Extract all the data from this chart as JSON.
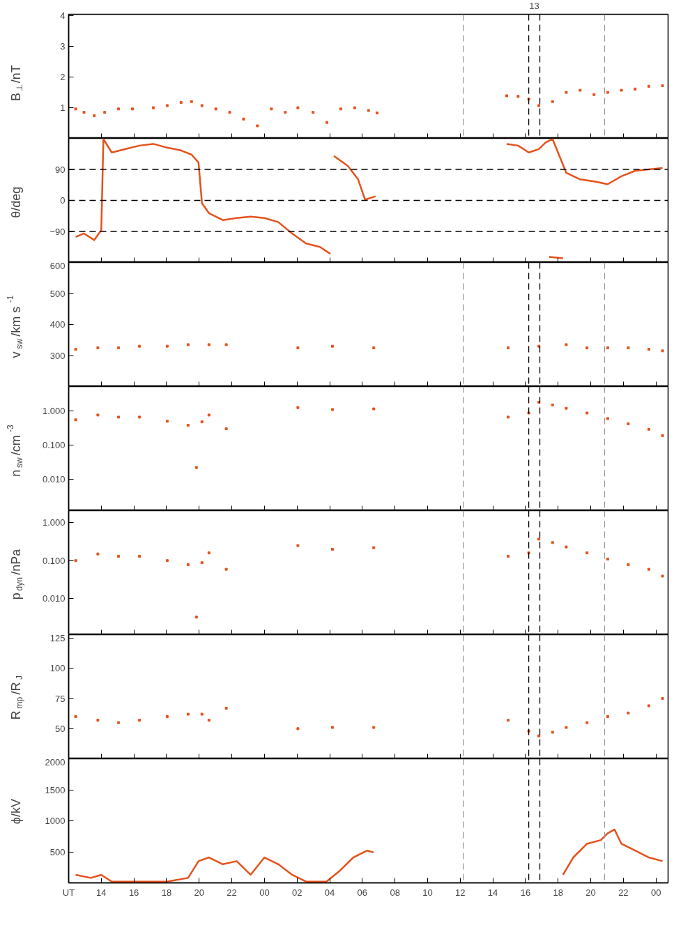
{
  "chart_data": [
    {
      "type": "scatter",
      "ylabel": "B$_{⊥}$/nT",
      "xlim": [
        12.0,
        48.74
      ],
      "xticks": [
        14,
        16,
        18,
        20,
        22,
        24,
        26,
        28,
        30,
        32,
        34,
        36,
        38,
        40,
        42,
        44,
        46,
        48
      ],
      "ylim": [
        0,
        4.05
      ],
      "yticks": [
        1,
        2,
        3,
        4
      ],
      "tick_labels": "y",
      "marker": "square",
      "series": [
        {
          "color": "#e4521c",
          "x": [
            12.43,
            12.94,
            13.57,
            14.21,
            15.06,
            15.91,
            17.19,
            18.04,
            18.89,
            19.53,
            20.17,
            21.02,
            21.87,
            22.72,
            23.57,
            24.43,
            25.28,
            26.05,
            26.98,
            27.83,
            28.68,
            29.53,
            30.38,
            30.9,
            38.85,
            39.55,
            40.2,
            40.82,
            41.66,
            42.5,
            43.35,
            44.2,
            45.04,
            45.88,
            46.72,
            47.56,
            48.4
          ],
          "values": [
            0.96,
            0.85,
            0.74,
            0.85,
            0.96,
            0.96,
            1.0,
            1.07,
            1.17,
            1.2,
            1.07,
            0.96,
            0.85,
            0.63,
            0.41,
            0.96,
            0.85,
            1.0,
            0.85,
            0.52,
            0.96,
            1.0,
            0.91,
            0.83,
            1.39,
            1.37,
            1.28,
            1.07,
            1.2,
            1.5,
            1.57,
            1.43,
            1.5,
            1.57,
            1.61,
            1.7,
            1.72
          ]
        }
      ],
      "ref_lines": [
        {
          "axis": "x",
          "value": 36.19,
          "color": "#999999",
          "line_style": "dashed"
        },
        {
          "axis": "x",
          "value": 40.2,
          "color": "#000000",
          "line_style": "dashed"
        },
        {
          "axis": "x",
          "value": 40.88,
          "color": "#000000",
          "line_style": "dashed"
        },
        {
          "axis": "x",
          "value": 44.85,
          "color": "#999999",
          "line_style": "dashed"
        }
      ],
      "annotations": [
        "13"
      ]
    },
    {
      "type": "line",
      "ylabel": "θ/deg",
      "xlim": [
        12.0,
        48.74
      ],
      "xticks": [
        14,
        16,
        18,
        20,
        22,
        24,
        26,
        28,
        30,
        32,
        34,
        36,
        38,
        40,
        42,
        44,
        46,
        48
      ],
      "ylim": [
        -180,
        180
      ],
      "yticks": [
        -90,
        0,
        90
      ],
      "tick_labels": "y",
      "line_style": "solid",
      "series": [
        {
          "color": "#e4521c",
          "x": [
            12.43,
            12.94,
            13.57,
            14.0,
            14.13,
            14.64,
            15.49,
            16.34,
            17.19,
            18.04,
            18.89,
            19.53,
            19.96,
            20.17,
            20.6,
            21.45,
            22.3,
            23.15,
            24.0,
            24.85,
            25.7,
            26.55,
            27.4,
            28.04,
            28.1,
            28.26,
            29.11,
            29.74,
            30.17,
            30.81,
            30.9,
            38.85,
            39.55,
            40.2,
            40.82,
            41.24,
            41.66,
            42.08,
            42.5,
            43.35,
            44.2,
            45.04,
            45.88,
            46.72,
            47.56,
            48.4
          ],
          "values": [
            -106,
            -96,
            -115,
            -86,
            178,
            139,
            149,
            159,
            164,
            153,
            145,
            133,
            110,
            -8,
            -37,
            -57,
            -51,
            -47,
            -51,
            -63,
            -96,
            -125,
            -135,
            -155,
            null,
            129,
            100,
            61,
            2,
            12,
            null,
            164,
            159,
            139,
            149,
            168,
            178,
            129,
            80,
            61,
            55,
            47,
            70,
            86,
            90,
            94
          ]
        },
        {
          "color": "#e4521c",
          "x": [
            41.45,
            42.3
          ],
          "values": [
            -164,
            -168
          ]
        }
      ],
      "ref_lines": [
        {
          "axis": "y",
          "value": 90,
          "color": "#000000",
          "line_style": "dashed"
        },
        {
          "axis": "y",
          "value": 0,
          "color": "#000000",
          "line_style": "dashed"
        },
        {
          "axis": "y",
          "value": -90,
          "color": "#000000",
          "line_style": "dashed"
        }
      ]
    },
    {
      "type": "scatter",
      "ylabel": "v$_{sw}$/km s$^{-1}$",
      "xlim": [
        12.0,
        48.74
      ],
      "xticks": [
        14,
        16,
        18,
        20,
        22,
        24,
        26,
        28,
        30,
        32,
        34,
        36,
        38,
        40,
        42,
        44,
        46,
        48
      ],
      "ylim": [
        200,
        600
      ],
      "yticks": [
        300,
        400,
        500,
        600
      ],
      "tick_labels": "y",
      "marker": "square",
      "series": [
        {
          "color": "#e4521c",
          "x": [
            12.43,
            13.79,
            15.06,
            16.34,
            18.04,
            19.32,
            20.6,
            21.66,
            26.05,
            28.17,
            30.7,
            38.94,
            40.82,
            42.5,
            43.77,
            45.04,
            46.3,
            47.56,
            48.4
          ],
          "values": [
            320,
            325,
            325,
            330,
            330,
            335,
            335,
            335,
            325,
            330,
            325,
            325,
            330,
            335,
            325,
            325,
            325,
            320,
            315
          ]
        }
      ],
      "ref_lines": [
        {
          "axis": "x",
          "value": 36.19,
          "color": "#999999",
          "line_style": "dashed"
        },
        {
          "axis": "x",
          "value": 40.2,
          "color": "#000000",
          "line_style": "dashed"
        },
        {
          "axis": "x",
          "value": 40.88,
          "color": "#000000",
          "line_style": "dashed"
        },
        {
          "axis": "x",
          "value": 44.85,
          "color": "#999999",
          "line_style": "dashed"
        }
      ]
    },
    {
      "type": "scatter",
      "ylabel": "n$_{sw}$/cm$^{-3}$",
      "log": "y",
      "xlim": [
        12.0,
        48.74
      ],
      "xticks": [
        14,
        16,
        18,
        20,
        22,
        24,
        26,
        28,
        30,
        32,
        34,
        36,
        38,
        40,
        42,
        44,
        46,
        48
      ],
      "ylim": [
        0.0012,
        5.2
      ],
      "yticks": [
        {
          "value": 0.01,
          "label": "0.010"
        },
        {
          "value": 0.1,
          "label": "0.100"
        },
        {
          "value": 1,
          "label": "1.000"
        }
      ],
      "tick_labels": "y",
      "marker": "square",
      "series": [
        {
          "color": "#e4521c",
          "x": [
            12.43,
            13.79,
            15.06,
            16.34,
            18.04,
            19.32,
            19.83,
            20.17,
            20.6,
            21.66,
            26.05,
            28.17,
            30.7,
            38.94,
            40.2,
            40.82,
            41.66,
            42.5,
            43.77,
            45.04,
            46.3,
            47.56,
            48.4
          ],
          "values": [
            0.55,
            0.76,
            0.66,
            0.66,
            0.5,
            0.38,
            0.022,
            0.48,
            0.76,
            0.3,
            1.26,
            1.1,
            1.15,
            0.66,
            0.87,
            1.8,
            1.5,
            1.2,
            0.87,
            0.6,
            0.42,
            0.29,
            0.19
          ]
        }
      ],
      "ref_lines": [
        {
          "axis": "x",
          "value": 36.19,
          "color": "#999999",
          "line_style": "dashed"
        },
        {
          "axis": "x",
          "value": 40.2,
          "color": "#000000",
          "line_style": "dashed"
        },
        {
          "axis": "x",
          "value": 40.88,
          "color": "#000000",
          "line_style": "dashed"
        },
        {
          "axis": "x",
          "value": 44.85,
          "color": "#999999",
          "line_style": "dashed"
        }
      ]
    },
    {
      "type": "scatter",
      "ylabel": "p$_{dyn}$/nPa",
      "log": "y",
      "xlim": [
        12.0,
        48.74
      ],
      "xticks": [
        14,
        16,
        18,
        20,
        22,
        24,
        26,
        28,
        30,
        32,
        34,
        36,
        38,
        40,
        42,
        44,
        46,
        48
      ],
      "ylim": [
        0.0011,
        2.1
      ],
      "yticks": [
        {
          "value": 0.01,
          "label": "0.010"
        },
        {
          "value": 0.1,
          "label": "0.100"
        },
        {
          "value": 1,
          "label": "1.000"
        }
      ],
      "tick_labels": "y",
      "marker": "square",
      "series": [
        {
          "color": "#e4521c",
          "x": [
            12.43,
            13.79,
            15.06,
            16.34,
            18.04,
            19.32,
            19.83,
            20.17,
            20.6,
            21.66,
            26.05,
            28.17,
            30.7,
            38.94,
            40.2,
            40.82,
            41.66,
            42.5,
            43.77,
            45.04,
            46.3,
            47.56,
            48.4
          ],
          "values": [
            0.1,
            0.15,
            0.13,
            0.13,
            0.1,
            0.078,
            0.0032,
            0.088,
            0.16,
            0.059,
            0.25,
            0.2,
            0.22,
            0.13,
            0.16,
            0.37,
            0.3,
            0.23,
            0.16,
            0.11,
            0.078,
            0.059,
            0.039
          ]
        }
      ],
      "ref_lines": [
        {
          "axis": "x",
          "value": 36.19,
          "color": "#999999",
          "line_style": "dashed"
        },
        {
          "axis": "x",
          "value": 40.2,
          "color": "#000000",
          "line_style": "dashed"
        },
        {
          "axis": "x",
          "value": 40.88,
          "color": "#000000",
          "line_style": "dashed"
        },
        {
          "axis": "x",
          "value": 44.85,
          "color": "#999999",
          "line_style": "dashed"
        }
      ]
    },
    {
      "type": "scatter",
      "ylabel": "R$_{mp}$/R$_{J}$",
      "xlim": [
        12.0,
        48.74
      ],
      "xticks": [
        14,
        16,
        18,
        20,
        22,
        24,
        26,
        28,
        30,
        32,
        34,
        36,
        38,
        40,
        42,
        44,
        46,
        48
      ],
      "ylim": [
        25,
        128
      ],
      "yticks": [
        50,
        75,
        100,
        125
      ],
      "tick_labels": "y",
      "marker": "square",
      "series": [
        {
          "color": "#e4521c",
          "x": [
            12.43,
            13.79,
            15.06,
            16.34,
            18.04,
            19.32,
            20.17,
            20.6,
            21.66,
            26.05,
            28.17,
            30.7,
            38.94,
            40.2,
            40.82,
            41.66,
            42.5,
            43.77,
            45.04,
            46.3,
            47.56,
            48.4
          ],
          "values": [
            60,
            57,
            55,
            57,
            60,
            62,
            62,
            57,
            67,
            50,
            51,
            51,
            57,
            48,
            44,
            47,
            51,
            55,
            60,
            63,
            69,
            75
          ]
        }
      ],
      "ref_lines": [
        {
          "axis": "x",
          "value": 36.19,
          "color": "#999999",
          "line_style": "dashed"
        },
        {
          "axis": "x",
          "value": 40.2,
          "color": "#000000",
          "line_style": "dashed"
        },
        {
          "axis": "x",
          "value": 40.88,
          "color": "#000000",
          "line_style": "dashed"
        },
        {
          "axis": "x",
          "value": 44.85,
          "color": "#999999",
          "line_style": "dashed"
        }
      ]
    },
    {
      "type": "line",
      "ylabel": "ϕ/kV",
      "xlim": [
        12.0,
        48.74
      ],
      "xticks": [
        14,
        16,
        18,
        20,
        22,
        {
          "value": 24,
          "label": "00"
        },
        {
          "value": 26,
          "label": "02"
        },
        {
          "value": 28,
          "label": "04"
        },
        {
          "value": 30,
          "label": "06"
        },
        {
          "value": 32,
          "label": "08"
        },
        {
          "value": 34,
          "label": "10"
        },
        {
          "value": 36,
          "label": "12"
        },
        {
          "value": 38,
          "label": "14"
        },
        {
          "value": 40,
          "label": "16"
        },
        {
          "value": 42,
          "label": "18"
        },
        {
          "value": 44,
          "label": "20"
        },
        {
          "value": 46,
          "label": "22"
        },
        {
          "value": 48,
          "label": "00"
        }
      ],
      "ylim": [
        0,
        2000
      ],
      "yticks": [
        500,
        1000,
        1500,
        2000
      ],
      "line_style": "solid",
      "series": [
        {
          "color": "#e4521c",
          "x": [
            12.43,
            13.36,
            14.0,
            14.64,
            16.34,
            18.04,
            19.32,
            19.96,
            20.6,
            21.45,
            22.3,
            23.15,
            24.0,
            24.85,
            25.7,
            26.55,
            27.8,
            28.6,
            29.45,
            30.3,
            30.7,
            null,
            42.3,
            42.93,
            43.77,
            44.62,
            45.04,
            45.46,
            45.88,
            46.72,
            47.56,
            48.4
          ],
          "values": [
            130,
            80,
            130,
            20,
            20,
            20,
            80,
            350,
            410,
            300,
            350,
            130,
            410,
            300,
            130,
            20,
            20,
            190,
            410,
            520,
            490,
            null,
            130,
            410,
            630,
            690,
            800,
            860,
            630,
            520,
            410,
            350
          ]
        }
      ],
      "ref_lines": [
        {
          "axis": "x",
          "value": 36.19,
          "color": "#999999",
          "line_style": "dashed"
        },
        {
          "axis": "x",
          "value": 40.2,
          "color": "#000000",
          "line_style": "dashed"
        },
        {
          "axis": "x",
          "value": 40.88,
          "color": "#000000",
          "line_style": "dashed"
        },
        {
          "axis": "x",
          "value": 44.85,
          "color": "#999999",
          "line_style": "dashed"
        }
      ],
      "annotations": [
        "UT"
      ]
    }
  ]
}
